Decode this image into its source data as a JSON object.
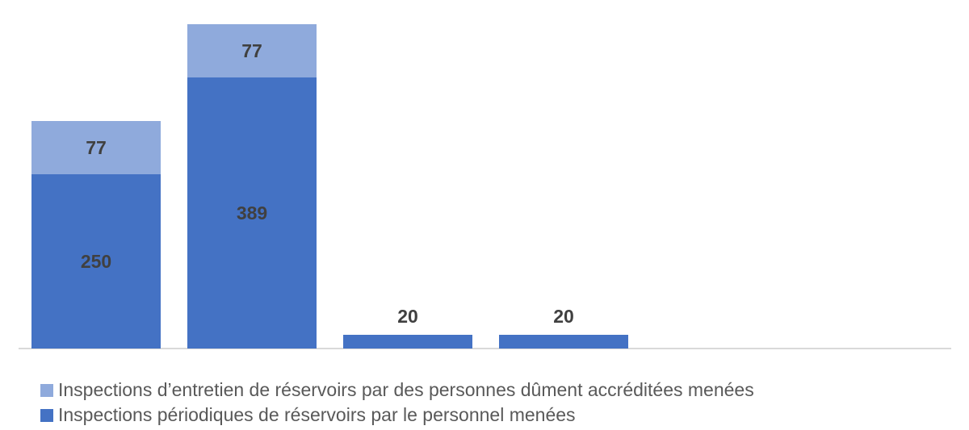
{
  "chart_data": {
    "type": "bar",
    "stacked": true,
    "title": "",
    "xlabel": "",
    "ylabel": "",
    "categories": [
      "",
      "",
      "",
      "",
      "",
      ""
    ],
    "series": [
      {
        "name": "Inspections périodiques de réservoirs par le personnel menées",
        "color": "#4472c4",
        "values": [
          250,
          389,
          20,
          20,
          null,
          null
        ]
      },
      {
        "name": "Inspections d’entretien de réservoirs par des personnes dûment accréditées menées",
        "color": "#8faadc",
        "values": [
          77,
          77,
          null,
          null,
          null,
          null
        ]
      }
    ],
    "data_labels": [
      {
        "bar": 0,
        "series": 0,
        "text": "250"
      },
      {
        "bar": 0,
        "series": 1,
        "text": "77"
      },
      {
        "bar": 1,
        "series": 0,
        "text": "389"
      },
      {
        "bar": 1,
        "series": 1,
        "text": "77"
      },
      {
        "bar": 2,
        "series": 0,
        "text": "20"
      },
      {
        "bar": 3,
        "series": 0,
        "text": "20"
      }
    ],
    "ylim": [
      0,
      466
    ],
    "grid": false,
    "y_axis_visible": false,
    "legend_position": "bottom-left"
  },
  "legend": [
    {
      "label": "Inspections d’entretien de réservoirs par des personnes dûment accréditées menées",
      "color": "#8faadc"
    },
    {
      "label": "Inspections périodiques de réservoirs par le personnel menées",
      "color": "#4472c4"
    }
  ]
}
